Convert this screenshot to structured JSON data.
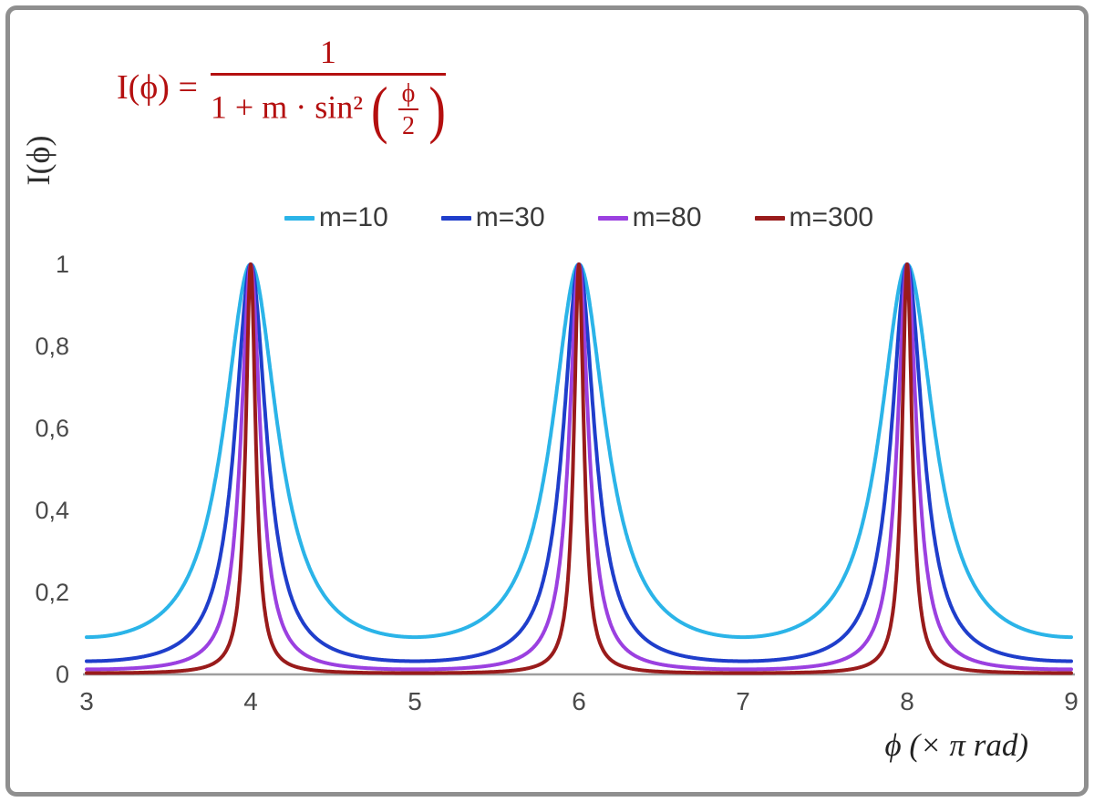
{
  "frame": {
    "background": "#ffffff",
    "border_color": "#8f8f8f"
  },
  "formula": {
    "lhs": "I(ϕ) =",
    "numerator": "1",
    "denominator_prefix": "1 + m · sin²",
    "open_paren": "(",
    "close_paren": ")",
    "inner_numerator": "ϕ",
    "inner_denominator": "2",
    "color": "#b40f0f"
  },
  "chart_data": {
    "type": "line",
    "formula": "I(ϕ) = 1 / (1 + m·sin²(ϕ/2))",
    "xlabel": "ϕ  (× π rad)",
    "ylabel": "I(ϕ)",
    "xlim": [
      3,
      9
    ],
    "ylim": [
      0,
      1
    ],
    "x_unit": "× π rad",
    "x_ticks": [
      "3",
      "4",
      "5",
      "6",
      "7",
      "8",
      "9"
    ],
    "y_ticks": [
      "0",
      "0,2",
      "0,4",
      "0,6",
      "0,8",
      "1"
    ],
    "peaks_x": [
      4,
      6,
      8
    ],
    "peak_value": 1,
    "grid": false,
    "legend_position": "top-center",
    "axis_color": "#9e9e9e",
    "tick_color": "#4a4a4a",
    "series": [
      {
        "name": "m=10",
        "m": 10,
        "color": "#2bb4e8"
      },
      {
        "name": "m=30",
        "m": 30,
        "color": "#1f3ecb"
      },
      {
        "name": "m=80",
        "m": 80,
        "color": "#9b40e0"
      },
      {
        "name": "m=300",
        "m": 300,
        "color": "#991b1b"
      }
    ]
  }
}
